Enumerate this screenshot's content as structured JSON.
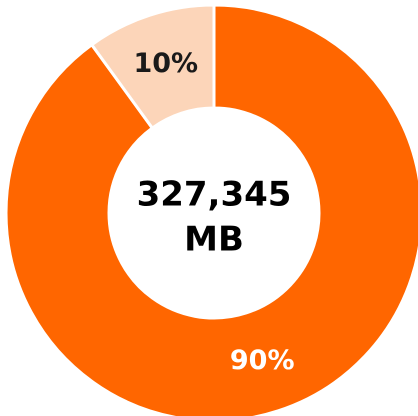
{
  "chart_data": {
    "type": "donut",
    "categories": [
      null,
      null
    ],
    "values": [
      90,
      10
    ],
    "value_labels": [
      "90%",
      "10%"
    ],
    "colors": [
      "#ff6600",
      "#fcd5b9"
    ],
    "label_colors": [
      "#ffffff",
      "#1a1a1a"
    ],
    "annotations": [
      "327,345",
      "MB"
    ]
  }
}
